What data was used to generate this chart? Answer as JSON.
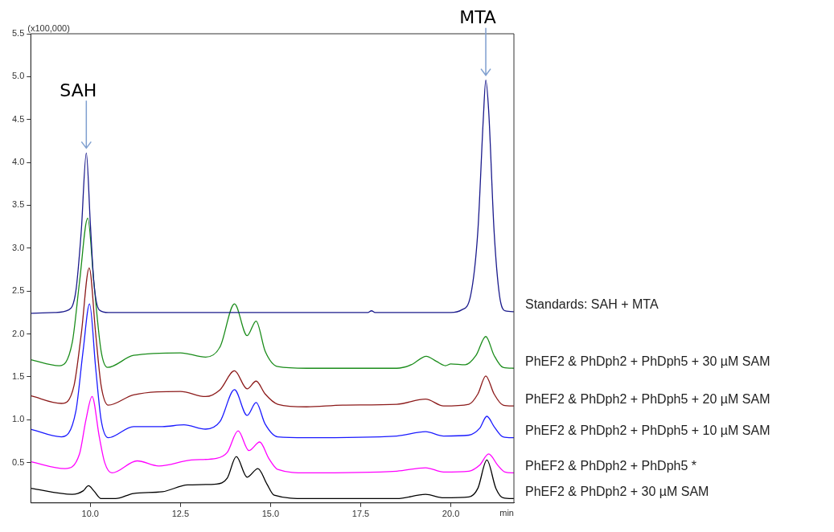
{
  "chart_data": {
    "type": "line",
    "xlabel": "min",
    "ylabel": "(x100,000)",
    "xlim": [
      8.35,
      21.75
    ],
    "ylim": [
      0.03,
      5.5
    ],
    "xticks": [
      {
        "value": 10,
        "label": "10.0"
      },
      12.5,
      {
        "value": 15,
        "label": "15.0"
      },
      17.5,
      {
        "value": 20,
        "label": "20.0"
      }
    ],
    "yticks": [
      0.5,
      {
        "value": 1,
        "label": "1.0"
      },
      1.5,
      {
        "value": 2,
        "label": "2.0"
      },
      2.5,
      {
        "value": 3,
        "label": "3.0"
      },
      3.5,
      {
        "value": 4,
        "label": "4.0"
      },
      4.5,
      {
        "value": 5,
        "label": "5.0"
      },
      5.5
    ],
    "annotations": [
      {
        "text": "SAH",
        "x": 9.89,
        "y": 4.11
      },
      {
        "text": "MTA",
        "x": 20.97,
        "y": 4.96
      }
    ],
    "series": [
      {
        "name": "Standards: SAH + MTA",
        "color": "#1a1a8c",
        "x": [
          8.35,
          9.0,
          9.4,
          9.6,
          9.75,
          9.89,
          10.0,
          10.1,
          10.25,
          10.5,
          17.7,
          17.8,
          17.9,
          20.0,
          20.3,
          20.55,
          20.75,
          20.9,
          20.97,
          21.05,
          21.2,
          21.35,
          21.5,
          21.75
        ],
        "values": [
          2.24,
          2.25,
          2.28,
          2.5,
          3.2,
          4.11,
          3.3,
          2.6,
          2.28,
          2.25,
          2.25,
          2.27,
          2.25,
          2.25,
          2.28,
          2.45,
          3.2,
          4.5,
          4.96,
          4.6,
          3.2,
          2.45,
          2.27,
          2.26
        ]
      },
      {
        "name": "PhEF2 & PhDph2 + PhDph5 + 30 µM SAM",
        "color": "#1a8c1a",
        "x": [
          8.35,
          9.14,
          9.5,
          9.7,
          9.93,
          10.1,
          10.3,
          10.48,
          11.2,
          12.5,
          13.2,
          13.6,
          14.0,
          14.35,
          14.6,
          14.85,
          15.2,
          16.0,
          18.5,
          18.9,
          19.32,
          19.6,
          19.85,
          20.0,
          20.4,
          20.7,
          20.97,
          21.2,
          21.45,
          21.75
        ],
        "values": [
          1.7,
          1.63,
          1.9,
          2.6,
          3.35,
          2.6,
          1.8,
          1.61,
          1.75,
          1.78,
          1.73,
          1.85,
          2.35,
          1.98,
          2.15,
          1.8,
          1.62,
          1.6,
          1.6,
          1.64,
          1.74,
          1.68,
          1.63,
          1.65,
          1.64,
          1.75,
          1.97,
          1.75,
          1.61,
          1.6
        ]
      },
      {
        "name": "PhEF2 & PhDph2 + PhDph5 + 20 µM SAM",
        "color": "#8c1a1a",
        "x": [
          8.35,
          9.2,
          9.55,
          9.75,
          9.97,
          10.15,
          10.3,
          10.5,
          11.2,
          12.5,
          13.2,
          13.6,
          14.0,
          14.35,
          14.6,
          14.85,
          15.2,
          16.0,
          17.0,
          18.5,
          19.3,
          19.8,
          20.5,
          20.75,
          20.97,
          21.2,
          21.45,
          21.75
        ],
        "values": [
          1.28,
          1.19,
          1.4,
          2.0,
          2.77,
          2.0,
          1.4,
          1.17,
          1.29,
          1.33,
          1.27,
          1.35,
          1.57,
          1.36,
          1.45,
          1.3,
          1.18,
          1.15,
          1.17,
          1.18,
          1.24,
          1.16,
          1.18,
          1.3,
          1.51,
          1.3,
          1.17,
          1.16
        ]
      },
      {
        "name": "PhEF2 & PhDph2 + PhDph5 + 10 µM SAM",
        "color": "#1a1aff",
        "x": [
          8.35,
          9.2,
          9.6,
          9.8,
          9.98,
          10.15,
          10.3,
          10.5,
          11.2,
          12.0,
          12.6,
          13.2,
          13.6,
          14.0,
          14.35,
          14.6,
          14.85,
          15.2,
          16.0,
          18.5,
          19.3,
          19.8,
          20.5,
          20.8,
          21.0,
          21.2,
          21.45,
          21.75
        ],
        "values": [
          0.89,
          0.8,
          1.1,
          1.8,
          2.35,
          1.6,
          1.0,
          0.79,
          0.92,
          0.92,
          0.94,
          0.89,
          0.98,
          1.35,
          1.05,
          1.2,
          0.95,
          0.8,
          0.79,
          0.81,
          0.86,
          0.81,
          0.82,
          0.9,
          1.04,
          0.92,
          0.8,
          0.79
        ]
      },
      {
        "name": "PhEF2 & PhDph2 + PhDph5 *",
        "color": "#ff00ff",
        "x": [
          8.35,
          9.3,
          9.7,
          9.88,
          10.05,
          10.25,
          10.4,
          10.6,
          11.3,
          11.9,
          12.8,
          13.5,
          13.8,
          14.1,
          14.4,
          14.7,
          14.95,
          15.2,
          16.0,
          18.5,
          19.3,
          19.8,
          20.5,
          20.8,
          21.05,
          21.3,
          21.5,
          21.75
        ],
        "values": [
          0.51,
          0.43,
          0.6,
          1.0,
          1.27,
          0.8,
          0.5,
          0.38,
          0.52,
          0.46,
          0.53,
          0.55,
          0.62,
          0.87,
          0.64,
          0.74,
          0.55,
          0.42,
          0.38,
          0.4,
          0.44,
          0.39,
          0.4,
          0.47,
          0.6,
          0.47,
          0.39,
          0.38
        ]
      },
      {
        "name": "PhEF2 & PhDph2 + 30 µM SAM",
        "color": "#000000",
        "x": [
          8.35,
          9.5,
          9.8,
          9.95,
          10.1,
          10.3,
          10.7,
          11.2,
          12.0,
          12.7,
          13.5,
          13.8,
          14.05,
          14.35,
          14.65,
          14.9,
          15.1,
          16.0,
          18.5,
          19.3,
          19.8,
          20.5,
          20.75,
          21.0,
          21.25,
          21.45,
          21.75
        ],
        "values": [
          0.2,
          0.13,
          0.17,
          0.23,
          0.17,
          0.08,
          0.08,
          0.14,
          0.16,
          0.24,
          0.25,
          0.32,
          0.57,
          0.33,
          0.43,
          0.25,
          0.12,
          0.08,
          0.08,
          0.13,
          0.09,
          0.1,
          0.2,
          0.53,
          0.2,
          0.09,
          0.08
        ]
      }
    ]
  }
}
